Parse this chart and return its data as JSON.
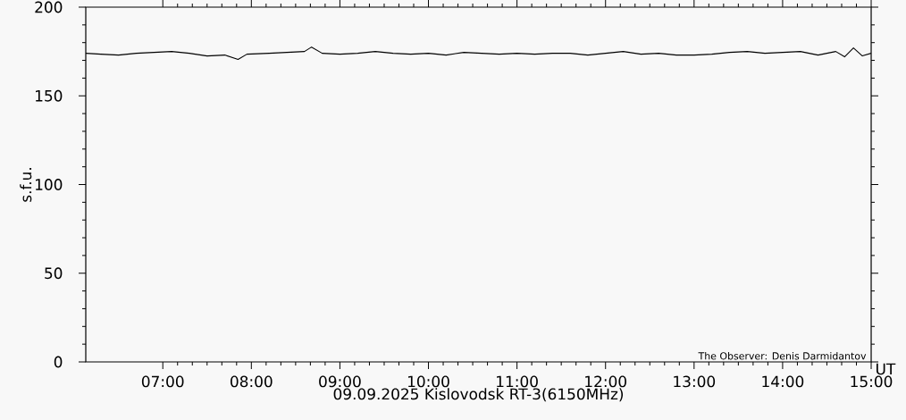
{
  "chart_data": {
    "type": "line",
    "xlabel": "09.09.2025 Kislovodsk RT-3(6150MHz)",
    "ylabel": "s.f.u.",
    "annotations": [
      "UT",
      "The Observer: Denis Darmidantov"
    ],
    "x": [
      6.13,
      6.3,
      6.5,
      6.7,
      6.9,
      7.1,
      7.3,
      7.5,
      7.7,
      7.85,
      7.95,
      8.2,
      8.4,
      8.6,
      8.68,
      8.8,
      9.0,
      9.2,
      9.4,
      9.6,
      9.8,
      10.0,
      10.2,
      10.4,
      10.6,
      10.8,
      11.0,
      11.2,
      11.4,
      11.6,
      11.8,
      12.0,
      12.2,
      12.4,
      12.6,
      12.8,
      13.0,
      13.2,
      13.4,
      13.6,
      13.8,
      14.0,
      14.2,
      14.4,
      14.6,
      14.7,
      14.8,
      14.9,
      15.0
    ],
    "series": [
      {
        "color": "#000000",
        "values": [
          174,
          173.5,
          173,
          174,
          174.5,
          175,
          174,
          172.5,
          173,
          170.5,
          173.5,
          174,
          174.5,
          175,
          177.5,
          174,
          173.5,
          174,
          175,
          174,
          173.5,
          174,
          173,
          174.5,
          174,
          173.5,
          174,
          173.5,
          174,
          174,
          173,
          174,
          175,
          173.5,
          174,
          173,
          173,
          173.5,
          174.5,
          175,
          174,
          174.5,
          175,
          173,
          175,
          172,
          177,
          172.5,
          174
        ]
      }
    ],
    "xlim": [
      6.13,
      15
    ],
    "ylim": [
      0,
      200
    ],
    "xticks": [
      {
        "value": 7,
        "label": "07:00"
      },
      {
        "value": 8,
        "label": "08:00"
      },
      {
        "value": 9,
        "label": "09:00"
      },
      {
        "value": 10,
        "label": "10:00"
      },
      {
        "value": 11,
        "label": "11:00"
      },
      {
        "value": 12,
        "label": "12:00"
      },
      {
        "value": 13,
        "label": "13:00"
      },
      {
        "value": 14,
        "label": "14:00"
      },
      {
        "value": 15,
        "label": "15:00"
      }
    ],
    "yticks": [
      0,
      50,
      100,
      150,
      200
    ],
    "grid": false,
    "marker": "none",
    "line_style": "solid"
  }
}
